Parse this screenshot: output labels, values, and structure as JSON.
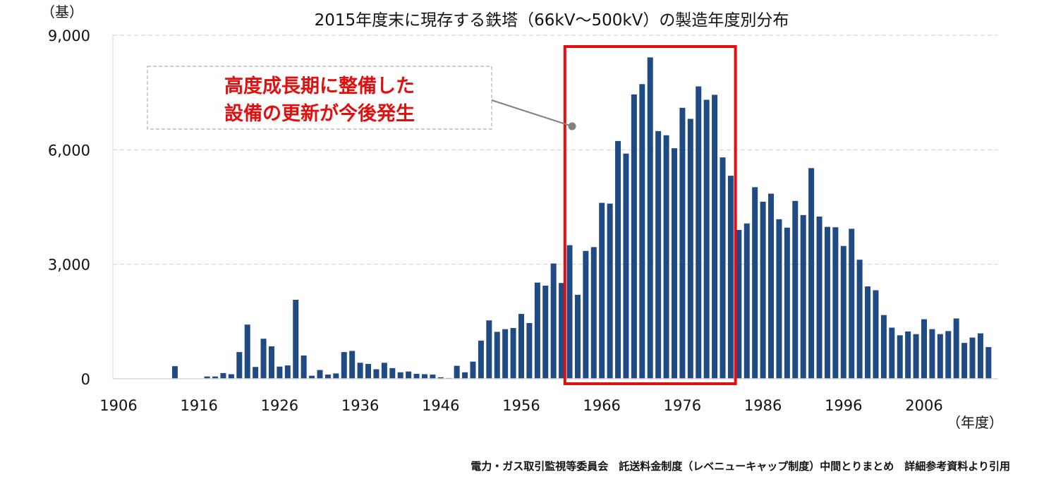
{
  "chart_data": {
    "type": "bar",
    "title": "2015年度末に現存する鉄塔（66kV～500kV）の製造年度別分布",
    "ylabel": "（基）",
    "xlabel": "（年度）",
    "ylim": [
      0,
      9000
    ],
    "yticks": [
      0,
      3000,
      6000,
      9000
    ],
    "ytick_labels": [
      "0",
      "3,000",
      "6,000",
      "9,000"
    ],
    "xticks": [
      1906,
      1916,
      1926,
      1936,
      1946,
      1956,
      1966,
      1976,
      1986,
      1996,
      2006
    ],
    "xtick_labels": [
      "1906",
      "1916",
      "1926",
      "1936",
      "1946",
      "1956",
      "1966",
      "1976",
      "1986",
      "1996",
      "2006"
    ],
    "x_start": 1906,
    "grid": "horizontal-dashed",
    "bar_color": "#1f4a84",
    "highlight": {
      "from_year": 1962,
      "to_year": 1983,
      "color": "#e01010",
      "label_lines": [
        "高度成長期に整備した",
        "設備の更新が今後発生"
      ]
    },
    "values": [
      0,
      0,
      0,
      0,
      0,
      0,
      0,
      330,
      0,
      0,
      0,
      60,
      60,
      150,
      120,
      700,
      1420,
      310,
      1050,
      850,
      320,
      350,
      2070,
      610,
      80,
      230,
      110,
      140,
      700,
      730,
      420,
      390,
      250,
      420,
      280,
      170,
      190,
      130,
      120,
      110,
      40,
      20,
      340,
      170,
      450,
      1000,
      1530,
      1230,
      1300,
      1330,
      1700,
      1460,
      2520,
      2440,
      3020,
      2510,
      3500,
      2200,
      3350,
      3450,
      4610,
      4590,
      6230,
      5900,
      7450,
      7720,
      8420,
      6490,
      6380,
      6040,
      7100,
      6810,
      7660,
      7310,
      7440,
      5800,
      5320,
      3900,
      4070,
      5020,
      4640,
      4850,
      4180,
      3960,
      4660,
      4290,
      5520,
      4250,
      3980,
      3970,
      3480,
      3930,
      3120,
      2420,
      2320,
      1670,
      1340,
      1140,
      1240,
      1170,
      1560,
      1300,
      1170,
      1250,
      1580,
      940,
      1080,
      1190,
      830
    ]
  },
  "source": "電力・ガス取引監視等委員会　託送料金制度（レベニューキャップ制度）中間とりまとめ　詳細参考資料より引用"
}
